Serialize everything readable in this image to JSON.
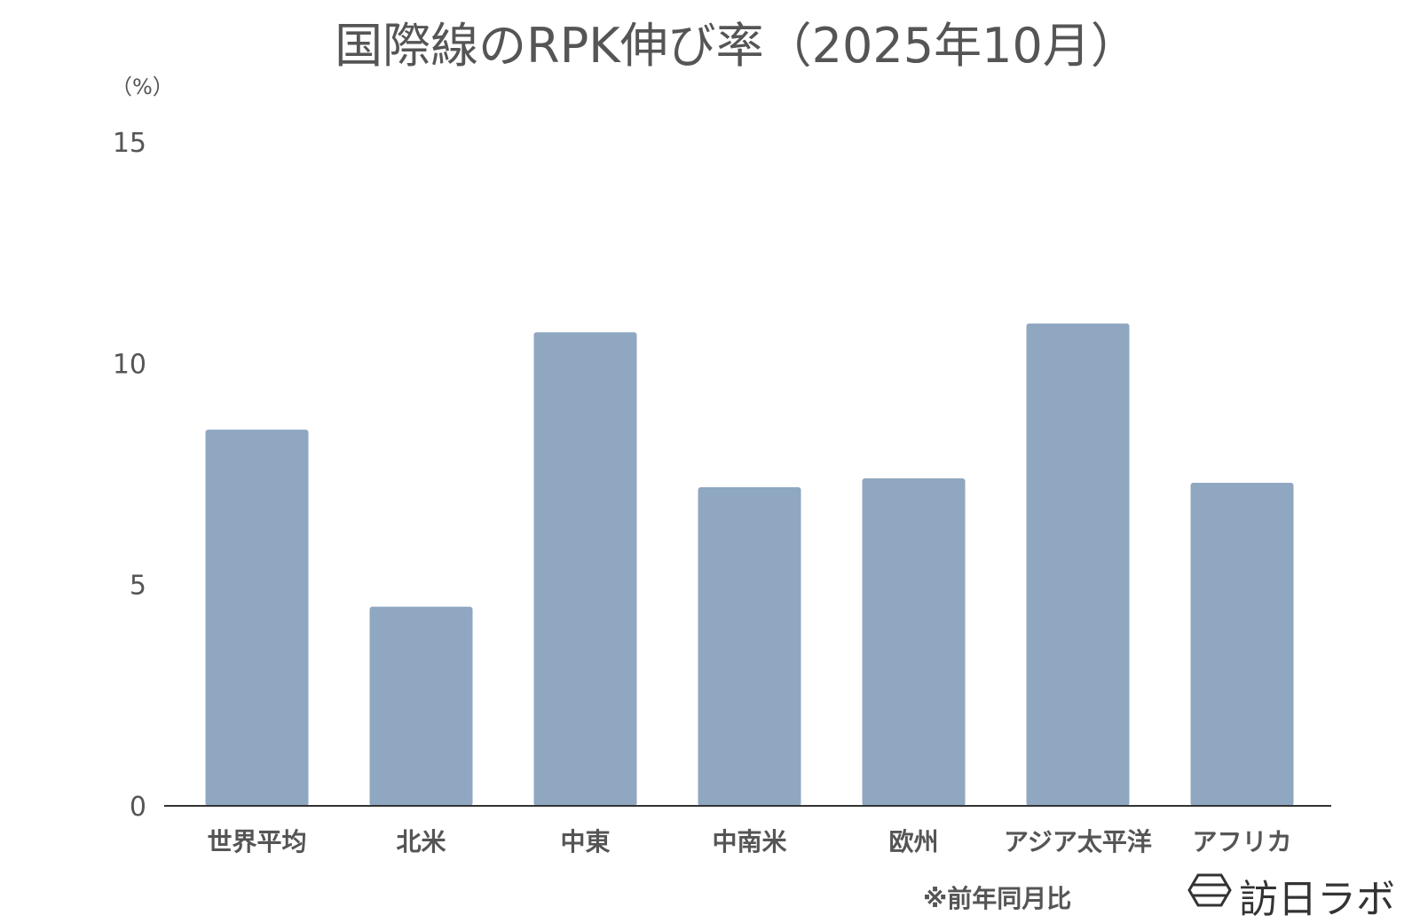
{
  "chart_data": {
    "type": "bar",
    "title": "国際線のRPK伸び率（2025年10月）",
    "ylabel": "（%）",
    "xlabel": "",
    "ylim": [
      0,
      15
    ],
    "yticks": [
      0,
      5,
      10,
      15
    ],
    "grid": false,
    "categories": [
      "世界平均",
      "北米",
      "中東",
      "中南米",
      "欧州",
      "アジア太平洋",
      "アフリカ"
    ],
    "values": [
      8.5,
      4.5,
      10.7,
      7.2,
      7.4,
      10.9,
      7.3
    ],
    "bar_color": "#8fa7c1"
  },
  "footnote": "※前年同月比",
  "brand": {
    "name": "訪日ラボ",
    "icon": "hexagon-logo-icon"
  }
}
